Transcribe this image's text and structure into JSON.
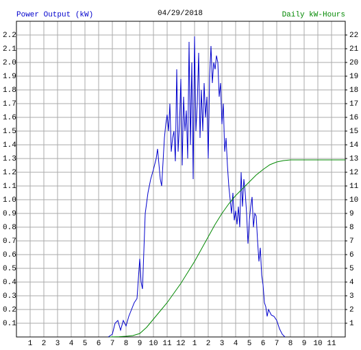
{
  "chart_data": {
    "type": "line",
    "title": "04/29/2018",
    "y_label": "Power Output (kW)",
    "y2_label": "Daily kW-Hours",
    "grid": true,
    "xlim": [
      0,
      24
    ],
    "xticks": [
      1,
      2,
      3,
      4,
      5,
      6,
      7,
      8,
      9,
      10,
      11,
      12,
      {
        "value": 13,
        "label": "1"
      },
      {
        "value": 14,
        "label": "2"
      },
      {
        "value": 15,
        "label": "3"
      },
      {
        "value": 16,
        "label": "4"
      },
      {
        "value": 17,
        "label": "5"
      },
      {
        "value": 18,
        "label": "6"
      },
      {
        "value": 19,
        "label": "7"
      },
      {
        "value": 20,
        "label": "8"
      },
      {
        "value": 21,
        "label": "9"
      },
      {
        "value": 22,
        "label": "10"
      },
      {
        "value": 23,
        "label": "11"
      }
    ],
    "ylim": [
      0,
      2.3
    ],
    "yticks": [
      0.1,
      0.2,
      0.3,
      0.4,
      0.5,
      0.6,
      0.7,
      0.8,
      0.9,
      {
        "value": 1,
        "label": "1.0"
      },
      1.1,
      1.2,
      1.3,
      1.4,
      1.5,
      1.6,
      1.7,
      1.8,
      1.9,
      {
        "value": 2,
        "label": "2.0"
      },
      2.1,
      2.2
    ],
    "y2lim": [
      0,
      23
    ],
    "y2ticks": [
      1,
      2,
      3,
      4,
      5,
      6,
      7,
      8,
      9,
      10,
      11,
      12,
      13,
      14,
      15,
      16,
      17,
      18,
      19,
      20,
      21,
      22
    ],
    "series": [
      {
        "name": "Power Output (kW)",
        "color": "#0000cc",
        "x": [
          6.7,
          7.0,
          7.2,
          7.4,
          7.6,
          7.8,
          8.0,
          8.2,
          8.4,
          8.6,
          8.8,
          9.0,
          9.1,
          9.2,
          9.4,
          9.6,
          9.8,
          10.0,
          10.2,
          10.3,
          10.5,
          10.6,
          10.8,
          10.9,
          11.0,
          11.1,
          11.2,
          11.3,
          11.4,
          11.5,
          11.6,
          11.7,
          11.8,
          11.9,
          12.0,
          12.1,
          12.2,
          12.3,
          12.4,
          12.5,
          12.6,
          12.7,
          12.8,
          12.9,
          13.0,
          13.1,
          13.2,
          13.3,
          13.4,
          13.5,
          13.6,
          13.7,
          13.8,
          13.9,
          14.0,
          14.1,
          14.2,
          14.3,
          14.4,
          14.5,
          14.6,
          14.7,
          14.8,
          14.9,
          15.0,
          15.1,
          15.2,
          15.3,
          15.4,
          15.5,
          15.6,
          15.7,
          15.8,
          15.9,
          16.0,
          16.1,
          16.2,
          16.3,
          16.4,
          16.5,
          16.6,
          16.7,
          16.8,
          16.9,
          17.0,
          17.1,
          17.2,
          17.3,
          17.4,
          17.5,
          17.6,
          17.7,
          17.8,
          17.9,
          18.0,
          18.1,
          18.2,
          18.3,
          18.4,
          18.6,
          18.8,
          19.0,
          19.2,
          19.4,
          19.6
        ],
        "values": [
          0,
          0.02,
          0.1,
          0.12,
          0.05,
          0.12,
          0.08,
          0.15,
          0.2,
          0.25,
          0.28,
          0.57,
          0.4,
          0.35,
          0.9,
          1.05,
          1.15,
          1.22,
          1.3,
          1.37,
          1.15,
          1.1,
          1.45,
          1.55,
          1.62,
          1.5,
          1.7,
          1.35,
          1.45,
          1.5,
          1.28,
          1.95,
          1.35,
          1.55,
          1.88,
          1.25,
          1.75,
          1.5,
          1.65,
          1.3,
          2.15,
          1.4,
          2.0,
          1.15,
          2.19,
          1.5,
          1.7,
          2.07,
          1.45,
          1.8,
          1.5,
          1.85,
          1.6,
          1.75,
          1.3,
          1.9,
          2.12,
          1.85,
          2.0,
          1.95,
          2.05,
          2.0,
          1.75,
          1.85,
          1.55,
          1.7,
          1.35,
          1.45,
          1.25,
          1.1,
          1.0,
          0.9,
          1.05,
          0.85,
          0.92,
          0.82,
          0.95,
          0.8,
          1.2,
          0.95,
          1.15,
          1.05,
          0.9,
          0.68,
          0.85,
          0.95,
          1.02,
          0.8,
          0.9,
          0.88,
          0.7,
          0.55,
          0.65,
          0.45,
          0.38,
          0.25,
          0.22,
          0.15,
          0.2,
          0.16,
          0.15,
          0.12,
          0.06,
          0.02,
          0
        ]
      },
      {
        "name": "Daily kW-Hours",
        "color": "#008800",
        "axis": "y2",
        "x": [
          6.8,
          7.5,
          8.0,
          8.5,
          9.0,
          9.5,
          10,
          10.5,
          11,
          11.5,
          12,
          12.5,
          13,
          13.5,
          14,
          14.5,
          15,
          15.5,
          16,
          16.5,
          17,
          17.5,
          18,
          18.5,
          19,
          19.5,
          20,
          21,
          24
        ],
        "values": [
          0,
          0.02,
          0.05,
          0.1,
          0.25,
          0.7,
          1.3,
          1.9,
          2.5,
          3.2,
          3.9,
          4.7,
          5.5,
          6.4,
          7.3,
          8.2,
          9.0,
          9.7,
          10.3,
          10.8,
          11.3,
          11.8,
          12.2,
          12.55,
          12.75,
          12.85,
          12.9,
          12.9,
          12.9
        ]
      }
    ]
  }
}
